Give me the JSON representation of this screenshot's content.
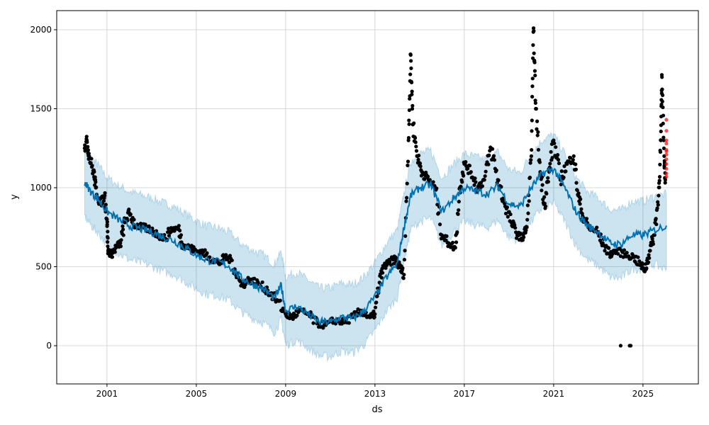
{
  "chart_data": {
    "type": "line",
    "title": "",
    "xlabel": "ds",
    "ylabel": "y",
    "xlim": [
      1998.75,
      2027.48
    ],
    "ylim": [
      -242,
      2121
    ],
    "grid": true,
    "x_ticks": [
      2001,
      2005,
      2009,
      2013,
      2017,
      2021,
      2025
    ],
    "x_tick_labels": [
      "2001",
      "2005",
      "2009",
      "2013",
      "2017",
      "2021",
      "2025"
    ],
    "y_ticks": [
      0,
      500,
      1000,
      1500,
      2000
    ],
    "y_tick_labels": [
      "0",
      "500",
      "1000",
      "1500",
      "2000"
    ],
    "colors": {
      "observed": "#000000",
      "yhat": "#0072B2",
      "interval": "#0072B2",
      "test": "#ff0000"
    },
    "forecast": {
      "x": [
        2000.0,
        2000.3,
        2000.6,
        2001.0,
        2001.5,
        2002.0,
        2002.5,
        2003.0,
        2003.5,
        2004.0,
        2004.5,
        2005.0,
        2005.5,
        2006.0,
        2006.5,
        2007.0,
        2007.5,
        2008.0,
        2008.5,
        2008.8,
        2009.0,
        2009.5,
        2010.0,
        2010.5,
        2011.0,
        2011.5,
        2012.0,
        2012.5,
        2013.0,
        2013.5,
        2014.0,
        2014.3,
        2014.6,
        2015.0,
        2015.5,
        2016.0,
        2016.5,
        2017.0,
        2017.5,
        2018.0,
        2018.5,
        2019.0,
        2019.5,
        2020.0,
        2020.5,
        2021.0,
        2021.5,
        2022.0,
        2022.5,
        2023.0,
        2023.5,
        2024.0,
        2024.5,
        2025.0,
        2025.5,
        2026.05
      ],
      "yhat": [
        1035,
        970,
        930,
        850,
        800,
        760,
        740,
        720,
        690,
        664,
        620,
        574,
        540,
        530,
        500,
        430,
        390,
        360,
        300,
        380,
        220,
        250,
        200,
        150,
        150,
        180,
        170,
        220,
        310,
        430,
        520,
        750,
        950,
        1000,
        1020,
        850,
        930,
        1000,
        980,
        960,
        1010,
        900,
        880,
        1000,
        1090,
        1120,
        1000,
        850,
        760,
        720,
        650,
        640,
        700,
        700,
        730,
        760
      ],
      "yhat_lower": [
        820,
        760,
        715,
        640,
        585,
        545,
        525,
        505,
        470,
        450,
        405,
        360,
        325,
        315,
        285,
        215,
        175,
        145,
        85,
        165,
        5,
        35,
        -15,
        -65,
        -70,
        -35,
        -45,
        5,
        95,
        215,
        305,
        535,
        735,
        785,
        805,
        635,
        715,
        785,
        765,
        745,
        795,
        685,
        665,
        785,
        875,
        905,
        785,
        635,
        545,
        505,
        435,
        425,
        485,
        485,
        515,
        480
      ],
      "yhat_upper": [
        1250,
        1185,
        1145,
        1065,
        1015,
        975,
        955,
        935,
        905,
        880,
        835,
        790,
        755,
        745,
        715,
        645,
        605,
        575,
        515,
        595,
        435,
        465,
        415,
        365,
        365,
        395,
        385,
        435,
        525,
        645,
        735,
        965,
        1165,
        1215,
        1235,
        1065,
        1145,
        1215,
        1195,
        1175,
        1225,
        1115,
        1095,
        1215,
        1305,
        1335,
        1215,
        1065,
        975,
        935,
        865,
        855,
        915,
        915,
        945,
        960
      ]
    },
    "observed": {
      "x": [
        2000.0,
        2000.1,
        2000.2,
        2000.4,
        2000.5,
        2000.7,
        2000.9,
        2001.0,
        2001.05,
        2001.2,
        2001.4,
        2001.6,
        2001.8,
        2002.0,
        2002.3,
        2002.6,
        2003.0,
        2003.3,
        2003.6,
        2003.9,
        2004.2,
        2004.4,
        2004.7,
        2005.0,
        2005.3,
        2005.6,
        2006.0,
        2006.3,
        2006.6,
        2007.0,
        2007.4,
        2007.8,
        2008.2,
        2008.6,
        2009.0,
        2009.3,
        2009.6,
        2010.0,
        2010.4,
        2010.8,
        2011.2,
        2011.6,
        2012.0,
        2012.4,
        2012.8,
        2013.0,
        2013.2,
        2013.4,
        2013.6,
        2013.9,
        2014.1,
        2014.3,
        2014.5,
        2014.6,
        2014.7,
        2014.9,
        2015.1,
        2015.4,
        2015.7,
        2016.0,
        2016.3,
        2016.6,
        2016.8,
        2017.0,
        2017.3,
        2017.6,
        2017.9,
        2018.2,
        2018.5,
        2018.8,
        2019.1,
        2019.4,
        2019.6,
        2019.8,
        2020.0,
        2020.1,
        2020.2,
        2020.4,
        2020.6,
        2020.8,
        2021.0,
        2021.3,
        2021.6,
        2021.9,
        2022.1,
        2022.3,
        2022.6,
        2022.9,
        2023.2,
        2023.5,
        2023.8,
        2024.2,
        2024.6,
        2024.9,
        2025.1,
        2025.3,
        2025.5,
        2025.7,
        2025.8,
        2025.85,
        2025.95,
        2026.0
      ],
      "y": [
        1250,
        1300,
        1200,
        1100,
        1000,
        900,
        950,
        800,
        600,
        580,
        620,
        650,
        780,
        840,
        760,
        750,
        730,
        700,
        680,
        740,
        740,
        640,
        620,
        600,
        590,
        560,
        520,
        560,
        540,
        380,
        420,
        390,
        350,
        290,
        200,
        180,
        220,
        200,
        140,
        130,
        160,
        150,
        180,
        220,
        180,
        200,
        400,
        500,
        520,
        550,
        500,
        450,
        1300,
        1840,
        1400,
        1200,
        1100,
        1050,
        1000,
        700,
        650,
        620,
        1000,
        1150,
        1100,
        1000,
        1050,
        1250,
        1050,
        900,
        780,
        700,
        680,
        750,
        1200,
        2010,
        1500,
        1100,
        900,
        1100,
        1300,
        1050,
        1150,
        1200,
        950,
        820,
        740,
        730,
        650,
        580,
        600,
        580,
        560,
        510,
        480,
        600,
        700,
        950,
        1300,
        1700,
        1200,
        1050
      ]
    },
    "outliers": {
      "x": [
        2024.0,
        2024.4,
        2024.45
      ],
      "y": [
        0,
        0,
        0
      ]
    },
    "test": {
      "x": [
        2026.05,
        2026.05,
        2026.05,
        2026.05,
        2026.05,
        2026.05,
        2026.05,
        2026.05,
        2026.05,
        2026.05,
        2026.05,
        2026.05
      ],
      "y": [
        1430,
        1360,
        1300,
        1280,
        1240,
        1230,
        1210,
        1180,
        1150,
        1120,
        1090,
        1070
      ]
    }
  }
}
